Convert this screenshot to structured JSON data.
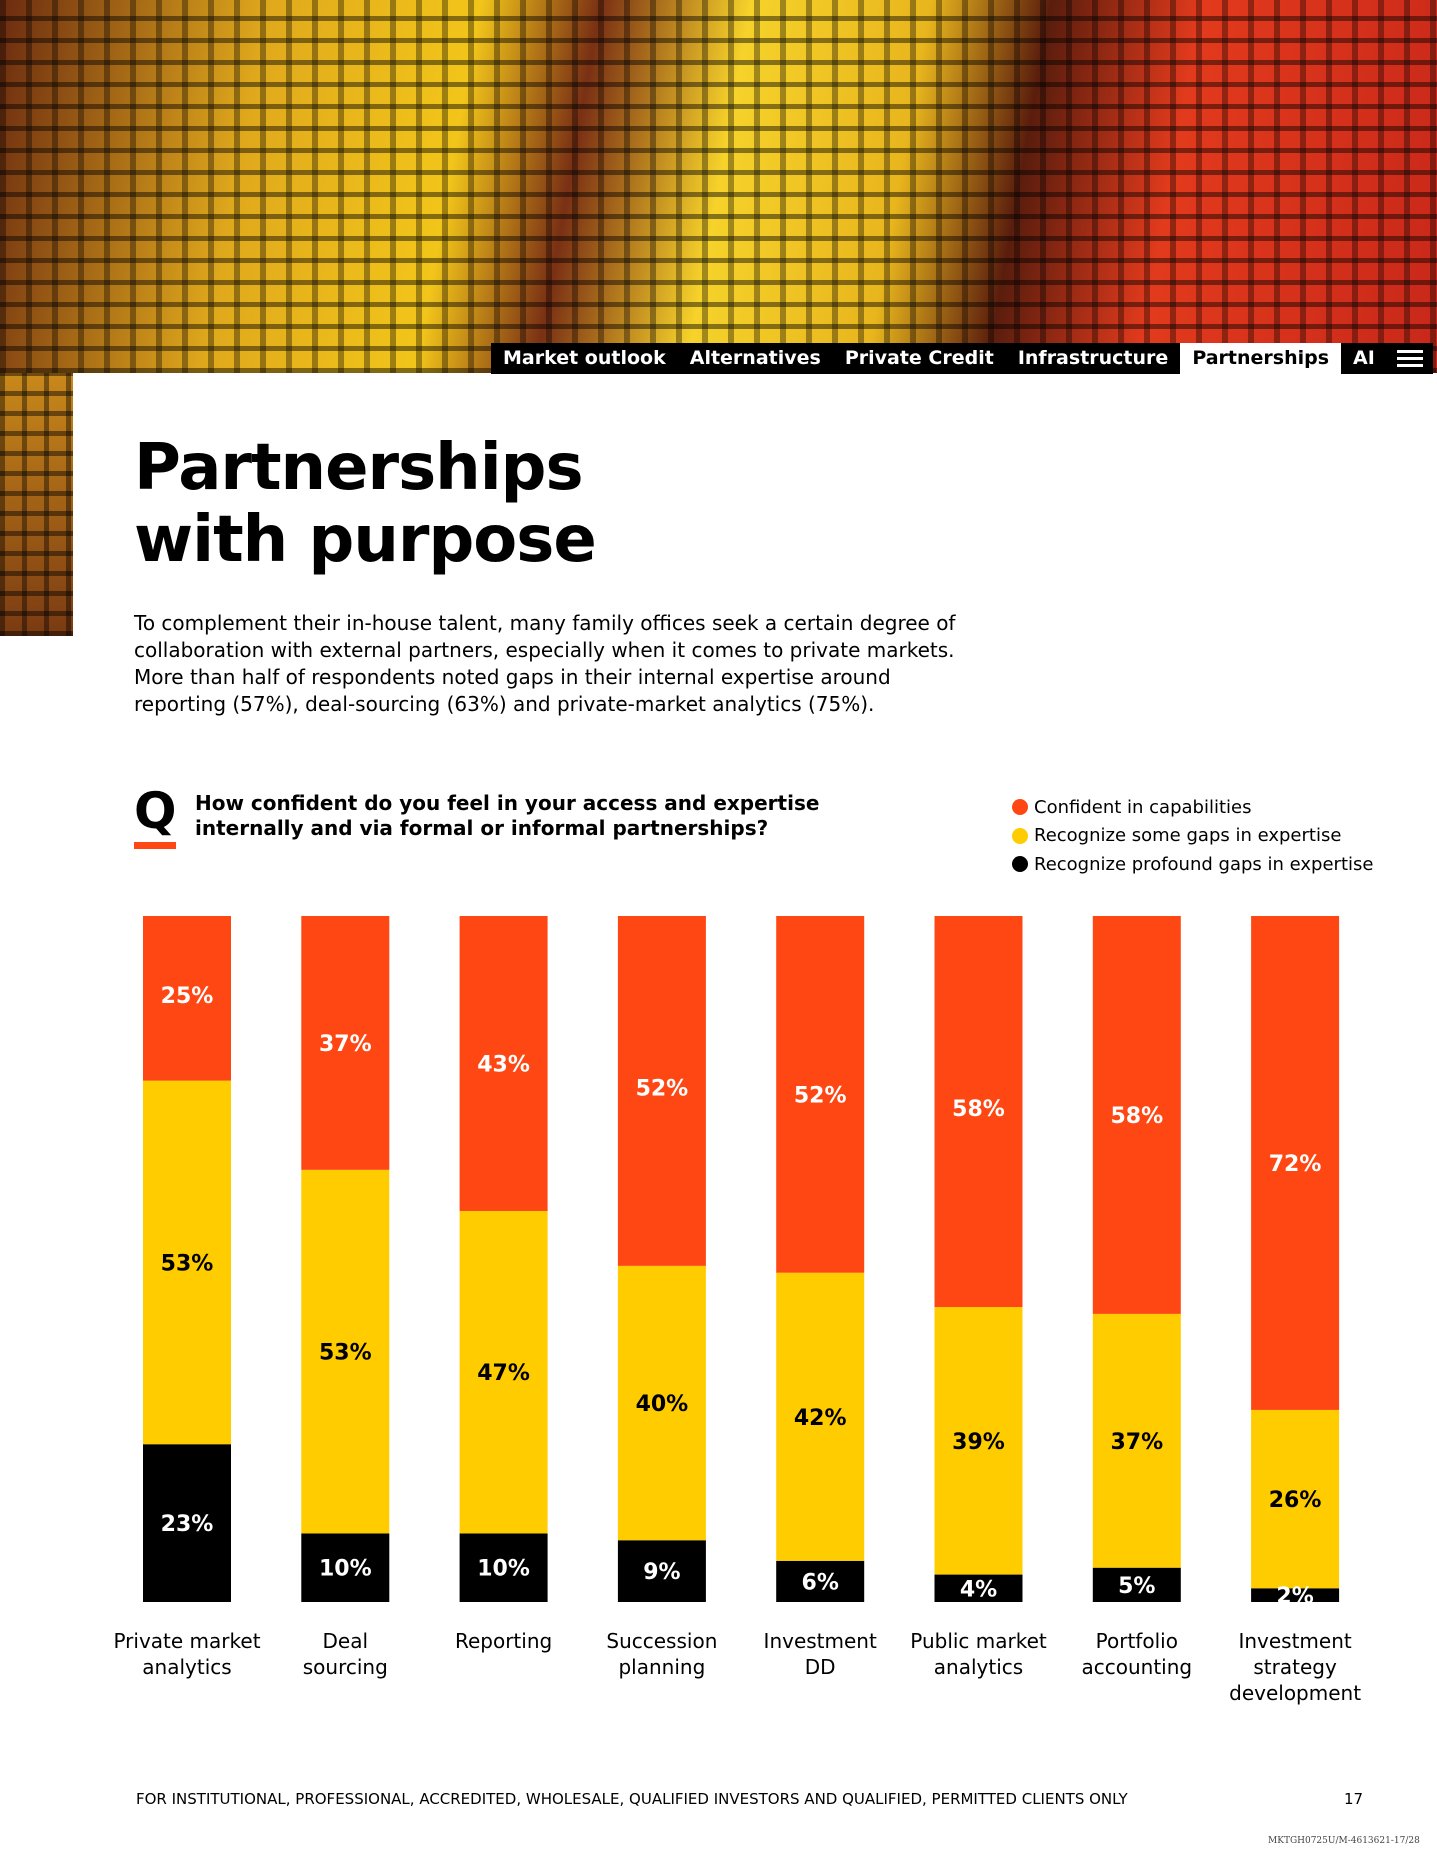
{
  "nav": [
    "Market outlook",
    "Alternatives",
    "Private Credit",
    "Infrastructure",
    "Partnerships",
    "AI"
  ],
  "header": {
    "title": "Partnerships\nwith purpose",
    "paragraph": "To complement their in-house talent, many family offices seek a certain degree of collaboration with external partners, especially when it comes to private markets. More than half of respondents noted gaps in their internal expertise around reporting (57%), deal-sourcing (63%) and private-market analytics (75%)."
  },
  "question": {
    "mark": "Q",
    "text": "How confident do you feel in your access and expertise internally and via formal or informal partnerships?"
  },
  "chart_data": {
    "type": "stacked_bar",
    "categories": [
      "Private market\nanalytics",
      "Deal\nsourcing",
      "Reporting",
      "Succession\nplanning",
      "Investment\nDD",
      "Public market\nanalytics",
      "Portfolio\naccounting",
      "Investment\nstrategy\ndevelopment"
    ],
    "ylim": [
      0,
      100
    ],
    "series": [
      {
        "name": "Confident in capabilities",
        "color": "#ff4713",
        "values": [
          25,
          37,
          43,
          52,
          52,
          58,
          58,
          72
        ],
        "value_labels": [
          "25%",
          "37%",
          "43%",
          "52%",
          "52%",
          "58%",
          "58%",
          "72%"
        ]
      },
      {
        "name": "Recognize some gaps in expertise",
        "color": "#ffcc00",
        "values": [
          53,
          53,
          47,
          40,
          42,
          39,
          37,
          26
        ],
        "value_labels": [
          "53%",
          "53%",
          "47%",
          "40%",
          "42%",
          "39%",
          "37%",
          "26%"
        ]
      },
      {
        "name": "Recognize profound gaps in expertise",
        "color": "#000000",
        "values": [
          23,
          10,
          10,
          9,
          6,
          4,
          5,
          2
        ],
        "value_labels": [
          "23%",
          "10%",
          "10%",
          "9%",
          "6%",
          "4%",
          "5%",
          "2%"
        ]
      }
    ]
  },
  "footer": {
    "text": "FOR INSTITUTIONAL, PROFESSIONAL, ACCREDITED, WHOLESALE, QUALIFIED INVESTORS AND QUALIFIED, PERMITTED CLIENTS ONLY",
    "page": "17",
    "code": "MKTGH0725U/M-4613621-17/28"
  }
}
